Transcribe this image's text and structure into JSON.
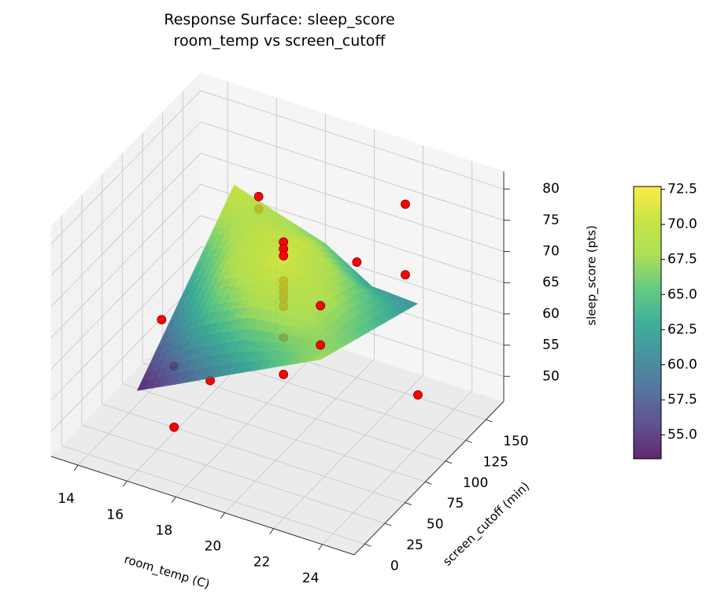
{
  "chart_data": {
    "type": "surface3d",
    "title": "Response Surface: sleep_score\nroom_temp vs screen_cutoff",
    "xlabel": "room_temp (C)",
    "ylabel": "screen_cutoff (min)",
    "zlabel": "sleep_score (pts)",
    "xlim": [
      12.9,
      25.3
    ],
    "ylim": [
      -13,
      172
    ],
    "zlim": [
      46,
      82.8
    ],
    "xticks": [
      14,
      16,
      18,
      20,
      22,
      24
    ],
    "yticks": [
      0,
      25,
      50,
      75,
      100,
      125,
      150
    ],
    "zticks": [
      50,
      55,
      60,
      65,
      70,
      75,
      80
    ],
    "grid": true,
    "colormap": "viridis",
    "clim": [
      53.3,
      72.7
    ],
    "cticks": [
      {
        "value": 55,
        "label": "55.0"
      },
      {
        "value": 57.5,
        "label": "57.5"
      },
      {
        "value": 60,
        "label": "60.0"
      },
      {
        "value": 62.5,
        "label": "62.5"
      },
      {
        "value": 65,
        "label": "65.0"
      },
      {
        "value": 67.5,
        "label": "67.5"
      },
      {
        "value": 70,
        "label": "70.0"
      },
      {
        "value": 72.5,
        "label": "72.5"
      }
    ],
    "surface": {
      "x": [
        15,
        16.875,
        18.75,
        20.625,
        22.5
      ],
      "y": [
        30,
        60,
        90,
        120,
        150
      ],
      "z": [
        [
          53.5,
          57.75,
          62,
          66.25,
          70.5
        ],
        [
          57.1,
          64.2,
          68.4,
          69.7,
          68.1
        ],
        [
          60.8,
          67.8,
          71.0,
          70.3,
          65.8
        ],
        [
          64.4,
          68.0,
          68.7,
          66.5,
          61.4
        ],
        [
          68,
          66.25,
          64.5,
          62.75,
          61
        ]
      ]
    },
    "scatter": {
      "color": "#ff0000",
      "x": [
        19,
        19,
        19,
        19,
        19,
        19,
        19,
        19,
        19,
        19,
        16,
        16,
        22,
        22,
        22,
        22,
        22,
        15.5,
        16,
        16,
        24.5,
        17.5
      ],
      "y": [
        90,
        90,
        90,
        90,
        90,
        90,
        90,
        90,
        90,
        90,
        150,
        150,
        150,
        150,
        90,
        45,
        45,
        45,
        45,
        90,
        90,
        0
      ],
      "z": [
        74.4,
        73.3,
        72.2,
        68.2,
        67.2,
        66.3,
        65.3,
        64.1,
        59.1,
        53.2,
        69.9,
        67.9,
        76.3,
        65.0,
        75.0,
        74.0,
        67.7,
        63.5,
        56.7,
        48.4,
        56.9,
        54.8
      ]
    }
  }
}
